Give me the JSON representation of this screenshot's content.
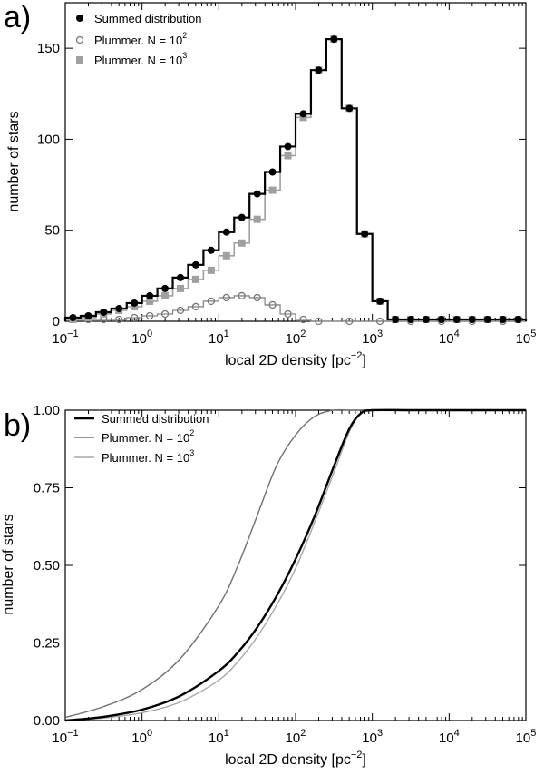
{
  "chart_data": [
    {
      "type": "histogram",
      "panel_label": "a)",
      "xlabel": "local 2D density [pc",
      "xlabel_sup": "−2",
      "xlabel_close": "]",
      "ylabel": "number of stars",
      "xscale": "log",
      "xlim_log10": [
        -1,
        5
      ],
      "ylim": [
        0,
        175
      ],
      "x_ticks": [
        {
          "base": "10",
          "exp": "−1",
          "v": -1
        },
        {
          "base": "10",
          "exp": "0",
          "v": 0
        },
        {
          "base": "10",
          "exp": "1",
          "v": 1
        },
        {
          "base": "10",
          "exp": "2",
          "v": 2
        },
        {
          "base": "10",
          "exp": "3",
          "v": 3
        },
        {
          "base": "10",
          "exp": "4",
          "v": 4
        },
        {
          "base": "10",
          "exp": "5",
          "v": 5
        }
      ],
      "y_ticks": [
        0,
        50,
        100,
        150
      ],
      "legend_position": "top-left",
      "bin_edges_log10": [
        -1.0,
        -0.8,
        -0.6,
        -0.4,
        -0.2,
        0.0,
        0.2,
        0.4,
        0.6,
        0.8,
        1.0,
        1.2,
        1.4,
        1.6,
        1.8,
        2.0,
        2.2,
        2.4,
        2.6,
        2.8,
        3.0,
        3.2,
        3.4,
        3.6,
        3.8,
        4.0,
        4.2,
        4.4,
        4.6,
        4.8,
        5.0
      ],
      "series": [
        {
          "name": "Summed distribution",
          "marker": "filled-circle",
          "color": "#000000",
          "values": [
            2,
            3,
            5,
            7,
            10,
            14,
            18,
            24,
            31,
            39,
            49,
            57,
            70,
            82,
            96,
            114,
            138,
            155,
            117,
            48,
            11,
            1,
            1,
            1,
            1,
            1,
            1,
            1,
            1,
            1
          ]
        },
        {
          "name": "Plummer. N = 10",
          "sup": "2",
          "marker": "open-circle",
          "color": "#777777",
          "values": [
            1,
            1,
            1,
            1,
            2,
            3,
            4,
            6,
            8,
            11,
            13,
            14,
            13,
            9,
            4,
            1,
            0,
            0,
            0,
            0,
            0,
            0,
            0,
            0,
            0,
            0,
            0,
            0,
            0,
            0
          ]
        },
        {
          "name": "Plummer. N = 10",
          "sup": "3",
          "marker": "square",
          "color": "#a0a0a0",
          "values": [
            1,
            2,
            4,
            6,
            8,
            11,
            14,
            18,
            23,
            28,
            36,
            43,
            56,
            72,
            91,
            112,
            138,
            155,
            117,
            48,
            11,
            1,
            1,
            1,
            1,
            1,
            1,
            1,
            1,
            1
          ]
        }
      ]
    },
    {
      "type": "line",
      "panel_label": "b)",
      "xlabel": "local 2D density [pc",
      "xlabel_sup": "−2",
      "xlabel_close": "]",
      "ylabel": "number of stars",
      "xscale": "log",
      "xlim_log10": [
        -1,
        5
      ],
      "ylim": [
        0,
        1.0
      ],
      "x_ticks": [
        {
          "base": "10",
          "exp": "−1",
          "v": -1
        },
        {
          "base": "10",
          "exp": "0",
          "v": 0
        },
        {
          "base": "10",
          "exp": "1",
          "v": 1
        },
        {
          "base": "10",
          "exp": "2",
          "v": 2
        },
        {
          "base": "10",
          "exp": "3",
          "v": 3
        },
        {
          "base": "10",
          "exp": "4",
          "v": 4
        },
        {
          "base": "10",
          "exp": "5",
          "v": 5
        }
      ],
      "y_ticks": [
        "0.00",
        "0.25",
        "0.50",
        "0.75",
        "1.00"
      ],
      "legend_position": "top-left",
      "x_log10": [
        -1.0,
        -0.5,
        0.0,
        0.5,
        1.0,
        1.25,
        1.5,
        1.75,
        2.0,
        2.25,
        2.5,
        2.7,
        2.85,
        3.0,
        3.5,
        4.0,
        5.0
      ],
      "series": [
        {
          "name": "Summed distribution",
          "color": "#000000",
          "width": "thick",
          "values": [
            0.0,
            0.012,
            0.035,
            0.08,
            0.16,
            0.22,
            0.3,
            0.4,
            0.52,
            0.66,
            0.82,
            0.94,
            0.99,
            1.0,
            1.0,
            1.0,
            1.0
          ]
        },
        {
          "name": "Plummer. N = 10",
          "sup": "2",
          "color": "#707070",
          "width": "medium",
          "values": [
            0.01,
            0.045,
            0.1,
            0.2,
            0.37,
            0.5,
            0.66,
            0.82,
            0.92,
            0.98,
            1.0,
            1.0,
            1.0,
            1.0,
            1.0,
            1.0,
            1.0
          ]
        },
        {
          "name": "Plummer. N = 10",
          "sup": "3",
          "color": "#a8a8a8",
          "width": "medium",
          "values": [
            0.0,
            0.008,
            0.025,
            0.06,
            0.13,
            0.19,
            0.27,
            0.37,
            0.49,
            0.64,
            0.8,
            0.93,
            0.99,
            1.0,
            1.0,
            1.0,
            1.0
          ]
        }
      ]
    }
  ]
}
